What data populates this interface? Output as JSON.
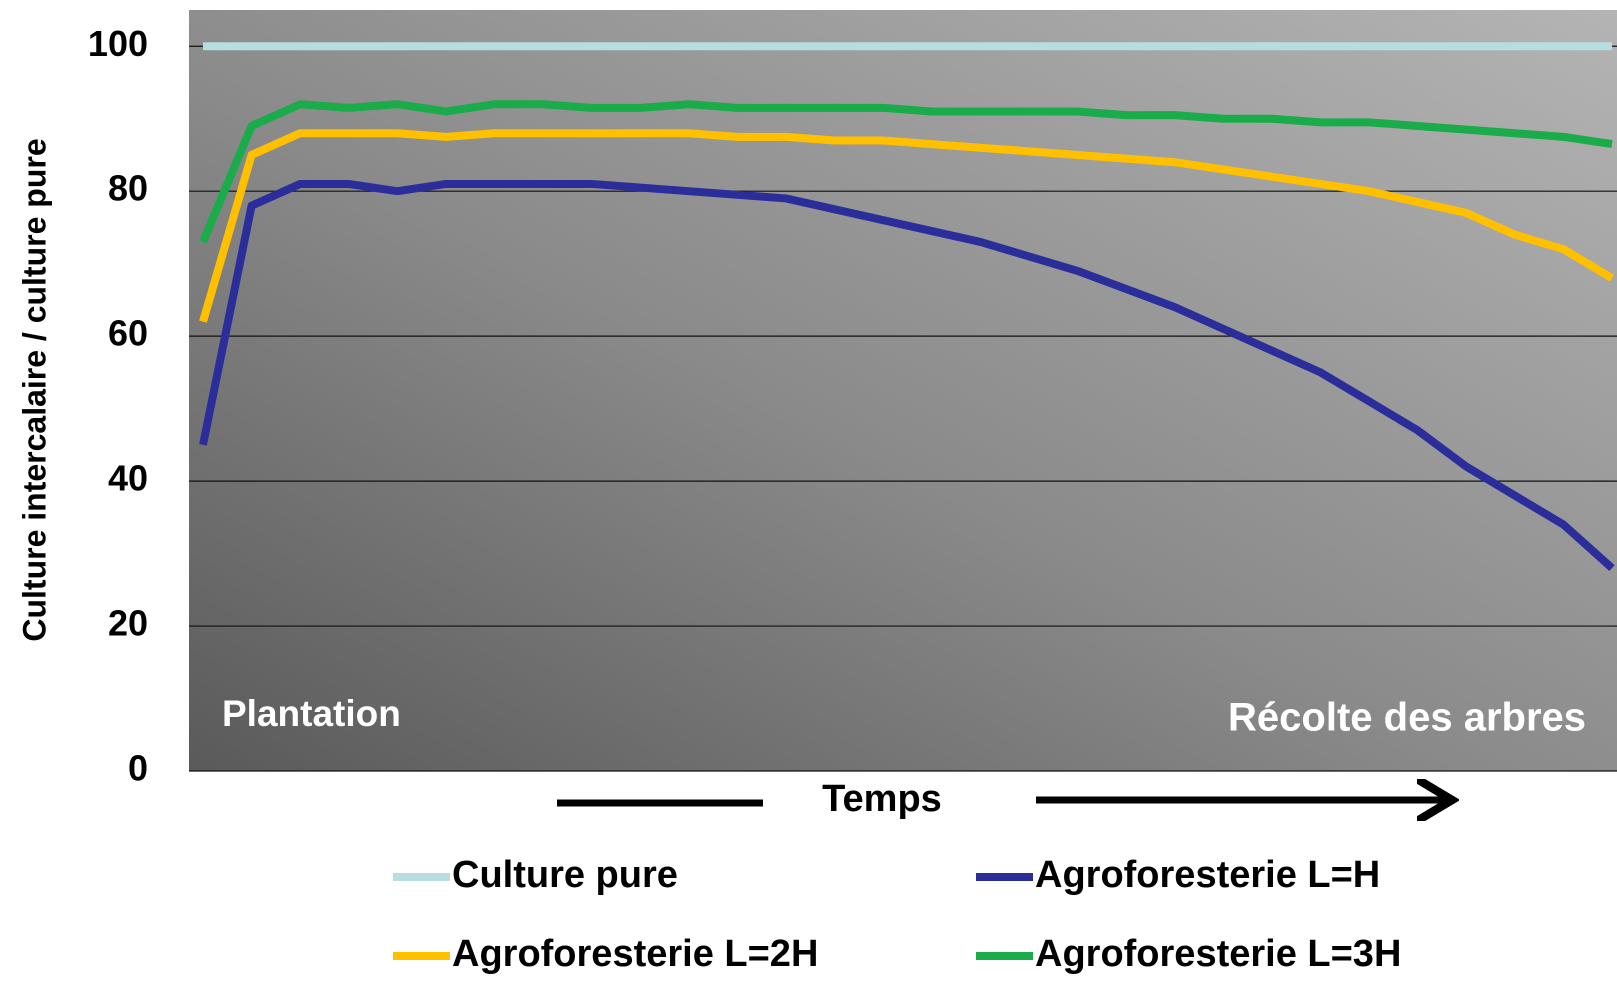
{
  "chart_data": {
    "type": "line",
    "y_label": "Culture intercalaire / culture pure",
    "x_label": "Temps",
    "annotations": [
      "Plantation",
      "Récolte des arbres"
    ],
    "categories": [
      null,
      null,
      null,
      null,
      null,
      null,
      null,
      null,
      null,
      null,
      null,
      null,
      null,
      null,
      null,
      null,
      null,
      null,
      null,
      null,
      null,
      null,
      null,
      null,
      null,
      null,
      null,
      null,
      null,
      null
    ],
    "series": [
      {
        "name": "Culture pure",
        "color": "#b7dde0",
        "values": [
          100,
          100,
          100,
          100,
          100,
          100,
          100,
          100,
          100,
          100,
          100,
          100,
          100,
          100,
          100,
          100,
          100,
          100,
          100,
          100,
          100,
          100,
          100,
          100,
          100,
          100,
          100,
          100,
          100,
          100
        ]
      },
      {
        "name": "Agroforesterie L=H",
        "color": "#2b2e9a",
        "values": [
          45,
          78,
          81,
          81,
          80,
          81,
          81,
          81,
          81,
          80.5,
          80,
          79.5,
          79,
          77.5,
          76,
          74.5,
          73,
          71,
          69,
          66.5,
          64,
          61,
          58,
          55,
          51,
          47,
          42,
          38,
          34,
          28
        ]
      },
      {
        "name": "Agroforesterie L=2H",
        "color": "#ffc000",
        "values": [
          62,
          85,
          88,
          88,
          88,
          87.5,
          88,
          88,
          88,
          88,
          88,
          87.5,
          87.5,
          87,
          87,
          86.5,
          86,
          85.5,
          85,
          84.5,
          84,
          83,
          82,
          81,
          80,
          78.5,
          77,
          74,
          72,
          68
        ]
      },
      {
        "name": "Agroforesterie L=3H",
        "color": "#1aab4b",
        "values": [
          73,
          89,
          92,
          91.5,
          92,
          91,
          92,
          92,
          91.5,
          91.5,
          92,
          91.5,
          91.5,
          91.5,
          91.5,
          91,
          91,
          91,
          91,
          90.5,
          90.5,
          90,
          90,
          89.5,
          89.5,
          89,
          88.5,
          88,
          87.5,
          86.5
        ]
      }
    ],
    "ylim": [
      0,
      105
    ],
    "yticks": [
      0,
      20,
      40,
      60,
      80,
      100
    ],
    "grid": true
  }
}
